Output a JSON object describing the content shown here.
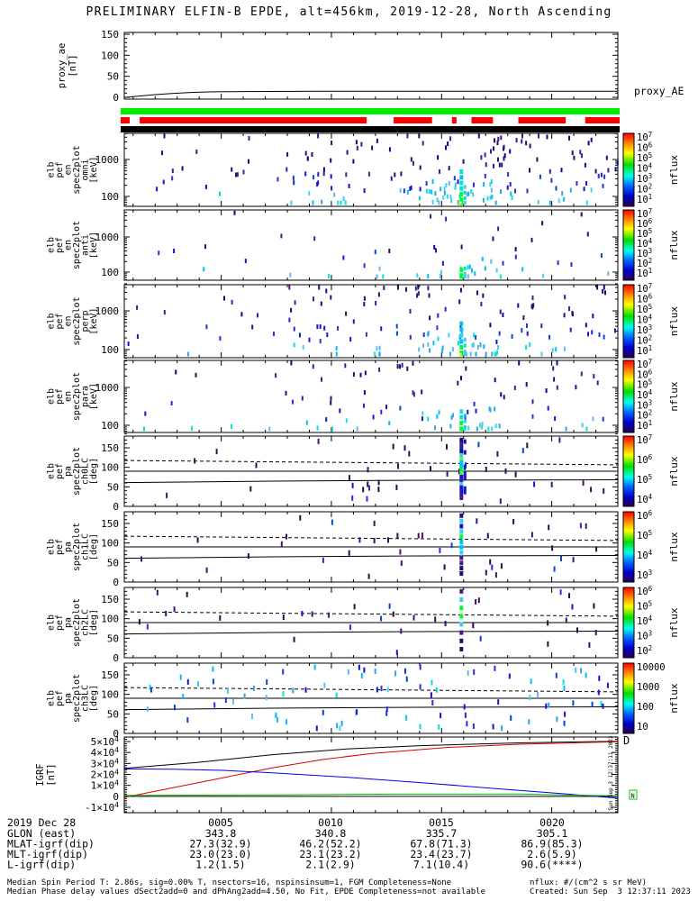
{
  "title": "PRELIMINARY ELFIN-B EPDE, alt=456km, 2019-12-28, North Ascending",
  "footer": {
    "line1": "Median Spin Period T: 2.86s, sig=0.00% T, nsectors=16, nspinsinsum=1, FGM Completeness=None",
    "line2": "Median Phase delay values dSect2add=0 and dPhAng2add=4.50, No Fit, EPDE Completeness=not available",
    "right1": "nflux: #/(cm^2 s sr MeV)",
    "right2": "Created: Sun Sep  3 12:37:11 2023"
  },
  "side_timestamp": "Sun Sep  3 12:37:11 2023",
  "artifacts": {
    "red_glyph": "D",
    "box_glyph": "N"
  },
  "colors": {
    "frame": "#000000",
    "bar_green": "#00ee00",
    "bar_red": "#ff0000",
    "bar_black": "#000000",
    "igrf": {
      "black": "#000000",
      "red": "#dd0000",
      "blue": "#0000ee",
      "green": "#00bb00"
    },
    "scatter_dark": [
      "#16166b",
      "#2a0a7a",
      "#46188c",
      "#0b0b8f",
      "#3c1e9e"
    ],
    "scatter_blue": [
      "#1515cd",
      "#2b2bdd",
      "#0f3fd0"
    ],
    "scatter_cyan": [
      "#00bfff",
      "#27a9e6",
      "#3fd2ef",
      "#66b8e8",
      "#00e5d0"
    ],
    "pa_dark": [
      "#3a0d5e",
      "#2d0a4e",
      "#4c1070"
    ],
    "burst_greens": [
      "#00ff2a",
      "#00e636",
      "#49ff49"
    ],
    "burst_cyans": [
      "#00e5d0",
      "#2fd5ef",
      "#00bfff"
    ],
    "burst_yellow": "#eeff00",
    "colorbar_stops": [
      [
        "0",
        "#ff0000"
      ],
      [
        "0.14",
        "#ff8800"
      ],
      [
        "0.27",
        "#ffff00"
      ],
      [
        "0.43",
        "#00dd00"
      ],
      [
        "0.58",
        "#00ffee"
      ],
      [
        "0.72",
        "#0066ff"
      ],
      [
        "0.86",
        "#0000cc"
      ],
      [
        "1",
        "#26004d"
      ]
    ]
  },
  "chart_data": {
    "type": "multi-panel spectrogram summary plot",
    "time_axis": {
      "date": "2019 Dec 28",
      "start_min": 0.6,
      "end_min": 23.0,
      "minor_step": 1,
      "major_step": 5,
      "major_ticks": [
        5,
        10,
        15,
        20
      ],
      "major_labels": [
        "0005",
        "0010",
        "0015",
        "0020"
      ]
    },
    "burst_x": 0.683,
    "proxy": {
      "type": "line",
      "ylabel_lines": [
        "proxy_ae",
        "[nT]"
      ],
      "ytick_values": [
        0,
        50,
        100,
        150
      ],
      "legend": "proxy_AE",
      "line": [
        [
          0,
          0
        ],
        [
          0.012,
          0.8
        ],
        [
          0.03,
          3
        ],
        [
          0.06,
          6.3
        ],
        [
          0.1,
          9.5
        ],
        [
          0.14,
          11.8
        ],
        [
          0.18,
          13
        ],
        [
          0.24,
          13.8
        ],
        [
          0.4,
          14.3
        ],
        [
          1,
          14.3
        ]
      ]
    },
    "bars": {
      "green": [
        [
          0,
          1
        ]
      ],
      "red": [
        [
          0,
          0.018
        ],
        [
          0.038,
          0.493
        ],
        [
          0.547,
          0.624
        ],
        [
          0.664,
          0.673
        ],
        [
          0.703,
          0.746
        ],
        [
          0.797,
          0.892
        ],
        [
          0.931,
          1
        ]
      ],
      "black": [
        [
          0,
          1
        ]
      ]
    },
    "energy_panels": [
      {
        "id": "omni",
        "type": "heatmap",
        "ylabel_lines": [
          "elb",
          "pef",
          "en",
          "spec2plot",
          "omni",
          "[keV]"
        ],
        "ytick_labels": [
          "100",
          "1000"
        ],
        "ylim_kev": [
          57,
          5400
        ],
        "colorbar_labels": [
          "10^7",
          "10^6",
          "10^5",
          "10^4",
          "10^3",
          "10^2",
          "10^1"
        ],
        "colorbar_unit": "nflux",
        "scatter": {
          "seed": 11,
          "n": 165,
          "cloud_n": 26,
          "burst_n": 7,
          "has_yellow": true
        }
      },
      {
        "id": "anti",
        "type": "heatmap",
        "ylabel_lines": [
          "elb",
          "pef",
          "en",
          "spec2plot",
          "anti",
          "[keV]"
        ],
        "ytick_labels": [
          "100",
          "1000"
        ],
        "ylim_kev": [
          57,
          5400
        ],
        "colorbar_labels": [
          "10^7",
          "10^6",
          "10^5",
          "10^4",
          "10^3",
          "10^2",
          "10^1"
        ],
        "colorbar_unit": "nflux",
        "scatter": {
          "seed": 23,
          "n": 42,
          "cloud_n": 12,
          "burst_n": 3,
          "has_yellow": false
        }
      },
      {
        "id": "perp",
        "type": "heatmap",
        "ylabel_lines": [
          "elb",
          "pef",
          "en",
          "spec2plot",
          "perp",
          "[keV]"
        ],
        "ytick_labels": [
          "100",
          "1000"
        ],
        "ylim_kev": [
          57,
          5400
        ],
        "colorbar_labels": [
          "10^7",
          "10^6",
          "10^5",
          "10^4",
          "10^3",
          "10^2",
          "10^1"
        ],
        "colorbar_unit": "nflux",
        "scatter": {
          "seed": 37,
          "n": 125,
          "cloud_n": 22,
          "burst_n": 7,
          "has_yellow": true
        }
      },
      {
        "id": "para",
        "type": "heatmap",
        "ylabel_lines": [
          "elb",
          "pef",
          "en",
          "spec2plot",
          "para",
          "[keV]"
        ],
        "ytick_labels": [
          "100",
          "1000"
        ],
        "ylim_kev": [
          57,
          5400
        ],
        "colorbar_labels": [
          "10^7",
          "10^6",
          "10^5",
          "10^4",
          "10^3",
          "10^2",
          "10^1"
        ],
        "colorbar_unit": "nflux",
        "scatter": {
          "seed": 51,
          "n": 80,
          "cloud_n": 16,
          "burst_n": 5,
          "has_yellow": false
        }
      }
    ],
    "pa_panels": [
      {
        "id": "ch0LC",
        "type": "heatmap",
        "ylabel_lines": [
          "elb",
          "pef",
          "pa",
          "spec2plot",
          "ch0LC",
          "[deg]"
        ],
        "ytick_values": [
          0,
          50,
          100,
          150
        ],
        "ylim_deg": [
          0,
          180
        ],
        "colorbar_labels": [
          "10^7",
          "10^6",
          "10^5",
          "10^4"
        ],
        "colorbar_unit": "nflux",
        "scatter": {
          "seed": 63,
          "n": 42,
          "burst_n": 17,
          "right_bias": 0.78,
          "style": "dark"
        }
      },
      {
        "id": "ch1LC",
        "type": "heatmap",
        "ylabel_lines": [
          "elb",
          "pef",
          "pa",
          "spec2plot",
          "ch1LC",
          "[deg]"
        ],
        "ytick_values": [
          0,
          50,
          100,
          150
        ],
        "ylim_deg": [
          0,
          180
        ],
        "colorbar_labels": [
          "10^6",
          "10^5",
          "10^4",
          "10^3"
        ],
        "colorbar_unit": "nflux",
        "scatter": {
          "seed": 71,
          "n": 40,
          "burst_n": 12,
          "right_bias": 0.78,
          "style": "dark"
        }
      },
      {
        "id": "ch2LC",
        "type": "heatmap",
        "ylabel_lines": [
          "elb",
          "pef",
          "pa",
          "spec2plot",
          "ch2LC",
          "[deg]"
        ],
        "ytick_values": [
          0,
          50,
          100,
          150
        ],
        "ylim_deg": [
          0,
          180
        ],
        "colorbar_labels": [
          "10^6",
          "10^5",
          "10^4",
          "10^3",
          "10^2"
        ],
        "colorbar_unit": "nflux",
        "scatter": {
          "seed": 83,
          "n": 36,
          "burst_n": 8,
          "right_bias": 0.72,
          "style": "dark"
        }
      },
      {
        "id": "ch3LC",
        "type": "heatmap",
        "ylabel_lines": [
          "elb",
          "pef",
          "pa",
          "spec2plot",
          "ch3LC",
          "[deg]"
        ],
        "ytick_values": [
          0,
          50,
          100,
          150
        ],
        "ylim_deg": [
          0,
          180
        ],
        "colorbar_labels": [
          "10000",
          "1000",
          "100",
          "10"
        ],
        "colorbar_unit": "nflux",
        "scatter": {
          "seed": 97,
          "n": 95,
          "burst_n": 0,
          "right_bias": 0.5,
          "style": "mix"
        }
      }
    ],
    "pa_lines": {
      "dashed": [
        [
          0,
          117.5
        ],
        [
          0.5,
          112
        ],
        [
          1,
          106.5
        ]
      ],
      "solid_mid": [
        [
          0,
          90
        ],
        [
          1,
          90
        ]
      ],
      "solid_low": [
        [
          0,
          61
        ],
        [
          0.3,
          64.5
        ],
        [
          0.6,
          67
        ],
        [
          1,
          68
        ]
      ]
    },
    "igrf": {
      "type": "line",
      "ylabel_lines": [
        "IGRF",
        "[nT]"
      ],
      "yticks": [
        {
          "v": 50000,
          "label": "5×10^4"
        },
        {
          "v": 40000,
          "label": "4×10^4"
        },
        {
          "v": 30000,
          "label": "3×10^4"
        },
        {
          "v": 20000,
          "label": "2×10^4"
        },
        {
          "v": 10000,
          "label": "1×10^4"
        },
        {
          "v": 0,
          "label": "0"
        },
        {
          "v": -10000,
          "label": "-1×10^4"
        }
      ],
      "series": [
        {
          "name": "B-total",
          "color_key": "black",
          "points": [
            [
              0,
              25500
            ],
            [
              0.15,
              31000
            ],
            [
              0.3,
              38000
            ],
            [
              0.45,
              43200
            ],
            [
              0.6,
              46200
            ],
            [
              0.8,
              48800
            ],
            [
              1,
              50200
            ]
          ]
        },
        {
          "name": "B-red",
          "color_key": "red",
          "points": [
            [
              0,
              -900
            ],
            [
              0.1,
              8000
            ],
            [
              0.2,
              17000
            ],
            [
              0.3,
              26000
            ],
            [
              0.4,
              33500
            ],
            [
              0.5,
              39000
            ],
            [
              0.65,
              44500
            ],
            [
              0.8,
              47500
            ],
            [
              1,
              49800
            ]
          ]
        },
        {
          "name": "B-blue",
          "color_key": "blue",
          "points": [
            [
              0,
              25000
            ],
            [
              0.1,
              24800
            ],
            [
              0.2,
              23700
            ],
            [
              0.3,
              21500
            ],
            [
              0.45,
              17500
            ],
            [
              0.6,
              12500
            ],
            [
              0.75,
              7200
            ],
            [
              0.9,
              2000
            ],
            [
              1,
              -1700
            ]
          ]
        },
        {
          "name": "B-green",
          "color_key": "green",
          "points": [
            [
              0,
              900
            ],
            [
              0.3,
              1400
            ],
            [
              0.55,
              2000
            ],
            [
              0.8,
              2100
            ],
            [
              0.93,
              900
            ],
            [
              1,
              450
            ]
          ]
        }
      ]
    }
  },
  "table": {
    "rows": [
      {
        "label": "2019 Dec 28",
        "values": [
          "0005",
          "0010",
          "0015",
          "0020"
        ]
      },
      {
        "label": "GLON (east)",
        "values": [
          "343.8",
          "340.8",
          "335.7",
          "305.1"
        ]
      },
      {
        "label": "MLAT-igrf(dip)",
        "values": [
          "27.3(32.9)",
          "46.2(52.2)",
          "67.8(71.3)",
          "86.9(85.3)"
        ]
      },
      {
        "label": "MLT-igrf(dip)",
        "values": [
          "23.0(23.0)",
          "23.1(23.2)",
          "23.4(23.7)",
          "2.6(5.9)"
        ]
      },
      {
        "label": "L-igrf(dip)",
        "values": [
          "1.2(1.5)",
          "2.1(2.9)",
          "7.1(10.4)",
          "90.6(****)"
        ]
      }
    ]
  }
}
